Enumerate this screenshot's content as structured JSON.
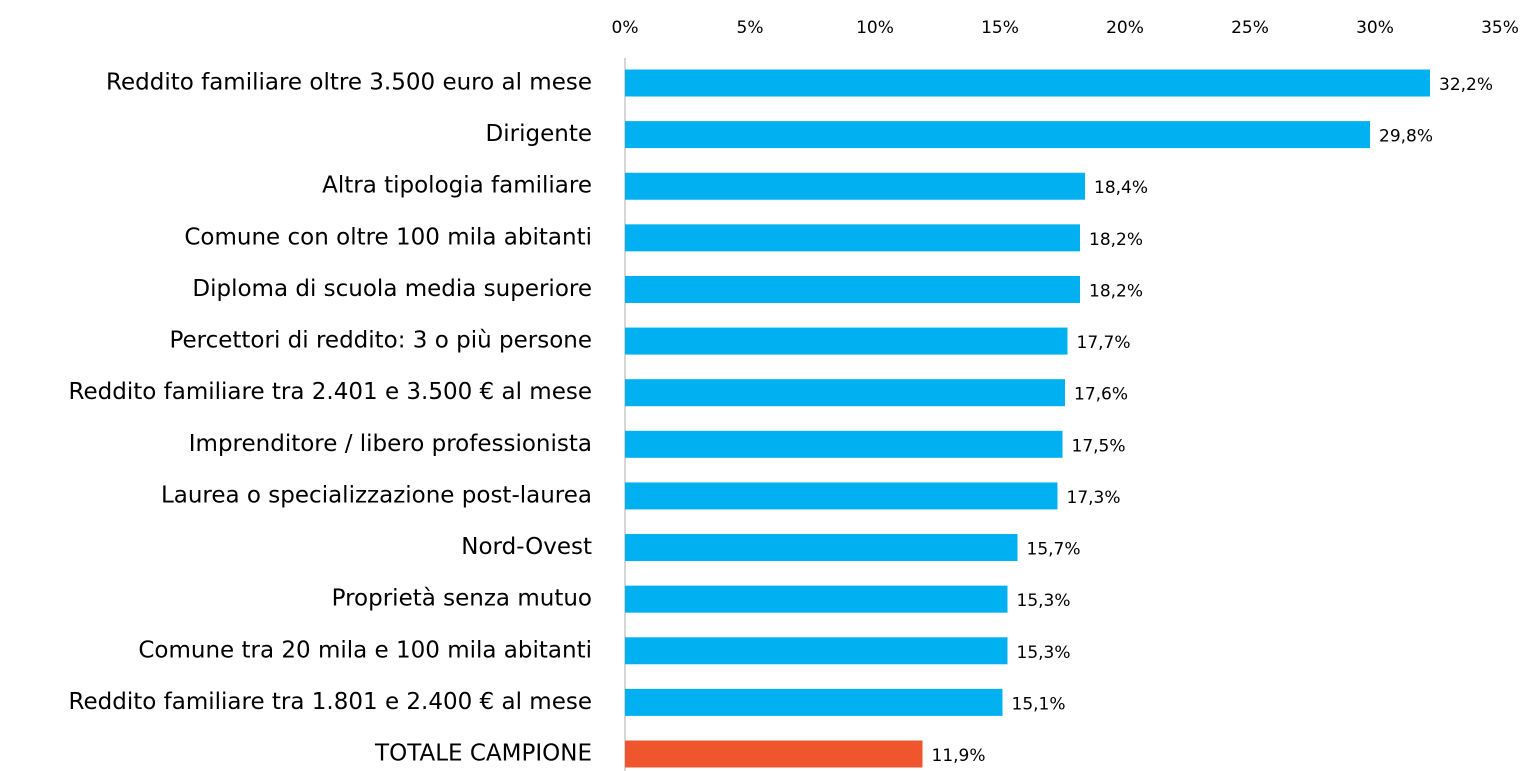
{
  "chart_data": {
    "type": "bar",
    "orientation": "horizontal",
    "categories": [
      "Reddito familiare oltre 3.500 euro al mese",
      "Dirigente",
      "Altra tipologia familiare",
      "Comune con oltre 100 mila abitanti",
      "Diploma di scuola media superiore",
      "Percettori di reddito: 3 o più persone",
      "Reddito familiare tra 2.401 e 3.500 € al mese",
      "Imprenditore / libero professionista",
      "Laurea o specializzazione post-laurea",
      "Nord-Ovest",
      "Proprietà senza mutuo",
      "Comune tra 20 mila e 100 mila abitanti",
      "Reddito familiare tra 1.801 e 2.400 € al mese",
      "TOTALE CAMPIONE"
    ],
    "values": [
      32.2,
      29.8,
      18.4,
      18.2,
      18.2,
      17.7,
      17.6,
      17.5,
      17.3,
      15.7,
      15.3,
      15.3,
      15.1,
      11.9
    ],
    "value_labels": [
      "32,2%",
      "29,8%",
      "18,4%",
      "18,2%",
      "18,2%",
      "17,7%",
      "17,6%",
      "17,5%",
      "17,3%",
      "15,7%",
      "15,3%",
      "15,3%",
      "15,1%",
      "11,9%"
    ],
    "colors": [
      "#00b0f0",
      "#00b0f0",
      "#00b0f0",
      "#00b0f0",
      "#00b0f0",
      "#00b0f0",
      "#00b0f0",
      "#00b0f0",
      "#00b0f0",
      "#00b0f0",
      "#00b0f0",
      "#00b0f0",
      "#00b0f0",
      "#f0562e"
    ],
    "xlim": [
      0,
      35
    ],
    "xticks": [
      {
        "value": 0,
        "label": "0%"
      },
      {
        "value": 5,
        "label": "5%"
      },
      {
        "value": 10,
        "label": "10%"
      },
      {
        "value": 15,
        "label": "15%"
      },
      {
        "value": 20,
        "label": "20%"
      },
      {
        "value": 25,
        "label": "25%"
      },
      {
        "value": 30,
        "label": "30%"
      },
      {
        "value": 35,
        "label": "35%"
      }
    ],
    "grid": false
  }
}
